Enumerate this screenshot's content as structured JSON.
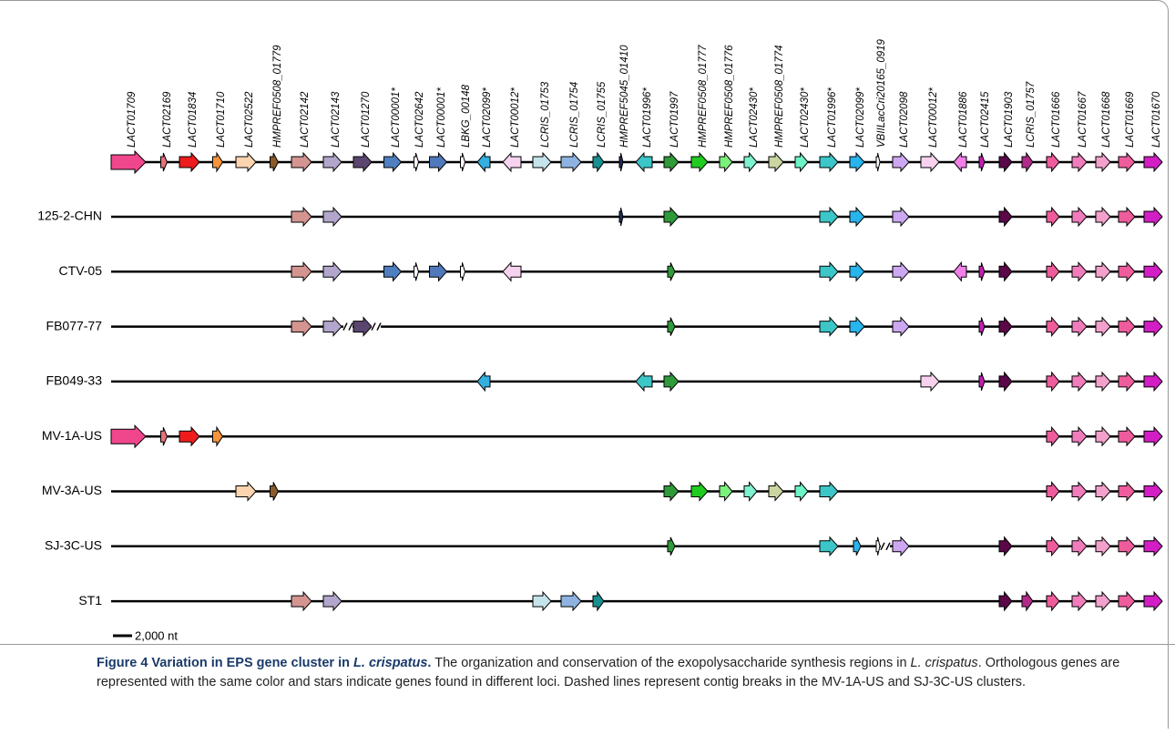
{
  "genes": [
    "LACT01709",
    "LACT02169",
    "LACT01834",
    "LACT01710",
    "LACT02522",
    "HMPREF0508_01779",
    "LACT02142",
    "LACT02143",
    "LACT01270",
    "LACT00001*",
    "LACT02642",
    "LACT00001*",
    "LBKG_00148",
    "LACT02099*",
    "LACT00012*",
    "LCRIS_01753",
    "LCRIS_01754",
    "LCRIS_01755",
    "HMPREF5045_01410",
    "LACT01996*",
    "LACT01997",
    "HMPREF0508_01777",
    "HMPREF0508_01776",
    "LACT02430*",
    "HMPREF0508_01774",
    "LACT02430*",
    "LACT01996*",
    "LACT02099*",
    "VBIILacCri20165_0919",
    "LACT02098",
    "LACT00012*",
    "LACT01886",
    "LACT02415",
    "LACT01903",
    "LCRIS_01757",
    "LACT01666",
    "LACT01667",
    "LACT01668",
    "LACT01669",
    "LACT01670"
  ],
  "strains": [
    "125-2-CHN",
    "CTV-05",
    "FB077-77",
    "FB049-33",
    "MV-1A-US",
    "MV-3A-US",
    "SJ-3C-US",
    "ST1"
  ],
  "scale_label": "2,000 nt",
  "caption": {
    "parts": [
      {
        "text": "Figure 4 Variation in EPS gene cluster in ",
        "style": "bold"
      },
      {
        "text": "L. crispatus",
        "style": "bold-italic"
      },
      {
        "text": ".",
        "style": "bold"
      },
      {
        "text": " The organization and conservation of the exopolysaccharide synthesis regions in ",
        "style": "normal"
      },
      {
        "text": "L. crispatus",
        "style": "italic"
      },
      {
        "text": ". Orthologous genes are represented with the same color and stars indicate genes found in different loci. Dashed lines represent contig breaks in the MV-1A-US and SJ-3C-US clusters.",
        "style": "normal"
      }
    ]
  }
}
